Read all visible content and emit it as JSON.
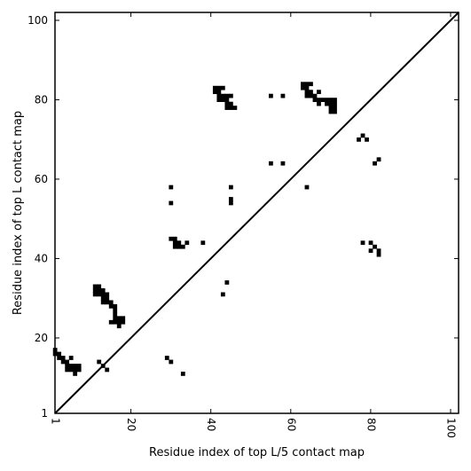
{
  "chart_data": {
    "type": "heatmap",
    "title": "",
    "xlabel": "Residue index of top L/5 contact map",
    "ylabel": "Residue index of top L contact map",
    "xlim": [
      1,
      102
    ],
    "ylim": [
      1,
      102
    ],
    "x_ticks": [
      1,
      20,
      40,
      60,
      80,
      100
    ],
    "y_ticks": [
      1,
      20,
      40,
      60,
      80,
      100
    ],
    "x_tick_labels": [
      "1",
      "20",
      "40",
      "60",
      "80",
      "100"
    ],
    "y_tick_labels": [
      "1",
      "20",
      "40",
      "60",
      "80",
      "100"
    ],
    "grid": false,
    "diagonal_line": true,
    "cell_color": "#000000",
    "upper_triangle_contacts": [
      [
        12,
        14
      ],
      [
        13,
        13
      ],
      [
        14,
        12
      ],
      [
        29,
        15
      ],
      [
        30,
        14
      ],
      [
        33,
        11
      ]
    ],
    "lower_triangle_contacts": [
      [
        1,
        17
      ],
      [
        1,
        16
      ],
      [
        2,
        15
      ],
      [
        2,
        16
      ],
      [
        3,
        15
      ],
      [
        3,
        14
      ],
      [
        4,
        14
      ],
      [
        4,
        13
      ],
      [
        4,
        12
      ],
      [
        5,
        13
      ],
      [
        5,
        12
      ],
      [
        6,
        12
      ],
      [
        6,
        13
      ],
      [
        6,
        11
      ],
      [
        7,
        12
      ],
      [
        7,
        13
      ],
      [
        5,
        15
      ],
      [
        11,
        33
      ],
      [
        12,
        33
      ],
      [
        11,
        32
      ],
      [
        12,
        32
      ],
      [
        13,
        32
      ],
      [
        11,
        31
      ],
      [
        12,
        31
      ],
      [
        13,
        31
      ],
      [
        14,
        31
      ],
      [
        13,
        30
      ],
      [
        14,
        30
      ],
      [
        13,
        29
      ],
      [
        14,
        29
      ],
      [
        15,
        29
      ],
      [
        15,
        28
      ],
      [
        16,
        28
      ],
      [
        16,
        27
      ],
      [
        16,
        26
      ],
      [
        16,
        25
      ],
      [
        17,
        25
      ],
      [
        18,
        25
      ],
      [
        16,
        24
      ],
      [
        17,
        24
      ],
      [
        18,
        24
      ],
      [
        15,
        24
      ],
      [
        17,
        23
      ],
      [
        30,
        58
      ],
      [
        30,
        54
      ],
      [
        30,
        45
      ],
      [
        31,
        45
      ],
      [
        31,
        44
      ],
      [
        32,
        44
      ],
      [
        31,
        43
      ],
      [
        32,
        43
      ],
      [
        33,
        43
      ],
      [
        34,
        44
      ],
      [
        38,
        44
      ],
      [
        43,
        31
      ],
      [
        44,
        34
      ],
      [
        45,
        58
      ],
      [
        45,
        55
      ],
      [
        45,
        54
      ],
      [
        41,
        83
      ],
      [
        42,
        83
      ],
      [
        43,
        83
      ],
      [
        41,
        82
      ],
      [
        42,
        82
      ],
      [
        42,
        81
      ],
      [
        43,
        81
      ],
      [
        44,
        81
      ],
      [
        45,
        81
      ],
      [
        42,
        80
      ],
      [
        43,
        80
      ],
      [
        44,
        80
      ],
      [
        44,
        79
      ],
      [
        45,
        79
      ],
      [
        44,
        78
      ],
      [
        45,
        78
      ],
      [
        46,
        78
      ],
      [
        55,
        81
      ],
      [
        58,
        81
      ],
      [
        55,
        64
      ],
      [
        58,
        64
      ],
      [
        64,
        58
      ],
      [
        63,
        84
      ],
      [
        64,
        84
      ],
      [
        65,
        84
      ],
      [
        63,
        83
      ],
      [
        64,
        83
      ],
      [
        64,
        82
      ],
      [
        65,
        82
      ],
      [
        64,
        81
      ],
      [
        65,
        81
      ],
      [
        66,
        81
      ],
      [
        67,
        82
      ],
      [
        66,
        80
      ],
      [
        67,
        80
      ],
      [
        68,
        80
      ],
      [
        69,
        80
      ],
      [
        70,
        80
      ],
      [
        71,
        80
      ],
      [
        67,
        79
      ],
      [
        69,
        79
      ],
      [
        70,
        79
      ],
      [
        71,
        79
      ],
      [
        70,
        78
      ],
      [
        71,
        78
      ],
      [
        70,
        77
      ],
      [
        71,
        77
      ],
      [
        77,
        70
      ],
      [
        78,
        71
      ],
      [
        79,
        70
      ],
      [
        81,
        64
      ],
      [
        82,
        65
      ],
      [
        78,
        44
      ],
      [
        80,
        44
      ],
      [
        80,
        42
      ],
      [
        81,
        43
      ],
      [
        82,
        42
      ],
      [
        82,
        41
      ]
    ]
  }
}
